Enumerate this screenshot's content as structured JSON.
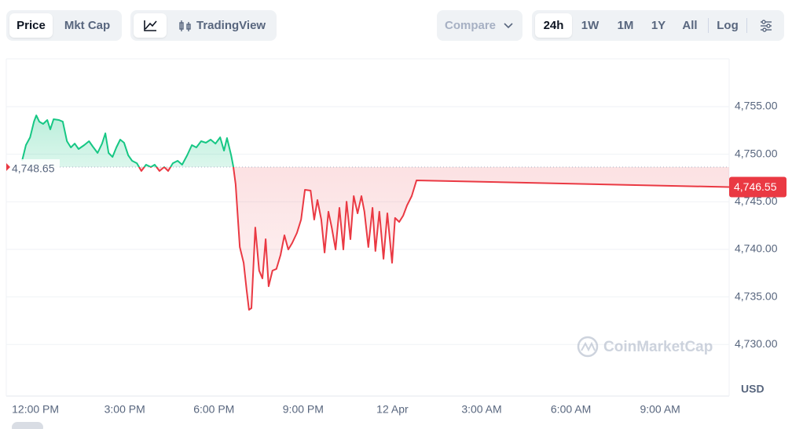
{
  "toolbar": {
    "tabs": [
      "Price",
      "Mkt Cap"
    ],
    "chart_style": "TradingView",
    "compare": "Compare",
    "ranges": [
      "24h",
      "1W",
      "1M",
      "1Y",
      "All"
    ],
    "log": "Log"
  },
  "chart_data": {
    "type": "line",
    "x": [
      11.55,
      11.68,
      11.82,
      11.95,
      12.03,
      12.13,
      12.26,
      12.4,
      12.5,
      12.61,
      12.79,
      12.92,
      13.06,
      13.19,
      13.32,
      13.45,
      13.64,
      13.8,
      13.93,
      14.09,
      14.24,
      14.35,
      14.46,
      14.59,
      14.72,
      14.85,
      14.98,
      15.12,
      15.25,
      15.41,
      15.56,
      15.72,
      15.88,
      16.01,
      16.17,
      16.33,
      16.46,
      16.62,
      16.78,
      16.93,
      17.1,
      17.26,
      17.41,
      17.57,
      17.73,
      17.89,
      18.05,
      18.21,
      18.34,
      18.44,
      18.58,
      18.65,
      18.73,
      18.87,
      19.0,
      19.1,
      19.18,
      19.26,
      19.39,
      19.52,
      19.63,
      19.74,
      19.84,
      19.97,
      20.1,
      20.24,
      20.37,
      20.5,
      20.63,
      20.79,
      20.93,
      21.06,
      21.25,
      21.37,
      21.48,
      21.61,
      21.72,
      21.85,
      21.96,
      22.09,
      22.22,
      22.35,
      22.46,
      22.59,
      22.7,
      22.83,
      22.96,
      23.06,
      23.19,
      23.33,
      23.43,
      23.56,
      23.7,
      23.83,
      23.99,
      24.09,
      24.23,
      24.36,
      24.49,
      24.65,
      24.81,
      35.32
    ],
    "values": [
      4749.31,
      4750.96,
      4751.78,
      4753.43,
      4754.09,
      4753.43,
      4753.19,
      4753.6,
      4752.61,
      4753.68,
      4753.6,
      4753.43,
      4751.37,
      4750.71,
      4751.12,
      4750.55,
      4750.96,
      4751.37,
      4750.8,
      4750.14,
      4751.12,
      4752.2,
      4750.14,
      4749.72,
      4750.71,
      4751.54,
      4751.21,
      4749.89,
      4749.31,
      4749.06,
      4748.24,
      4748.9,
      4748.65,
      4748.9,
      4748.24,
      4748.65,
      4748.24,
      4749.06,
      4749.31,
      4748.9,
      4749.89,
      4750.96,
      4750.71,
      4751.37,
      4751.21,
      4751.54,
      4751.12,
      4751.78,
      4750.38,
      4751.7,
      4749.89,
      4748.73,
      4746.84,
      4740.24,
      4738.59,
      4735.71,
      4733.65,
      4733.82,
      4742.3,
      4737.77,
      4736.95,
      4741.07,
      4736.12,
      4737.77,
      4737.94,
      4739.42,
      4741.48,
      4739.99,
      4740.66,
      4741.73,
      4743.13,
      4746.26,
      4746.18,
      4743.13,
      4745.19,
      4743.13,
      4739.67,
      4743.96,
      4742.3,
      4739.99,
      4744.37,
      4739.99,
      4745.02,
      4741.07,
      4745.6,
      4743.79,
      4745.6,
      4743.96,
      4740.24,
      4744.37,
      4739.83,
      4743.96,
      4739.01,
      4743.79,
      4738.59,
      4743.3,
      4742.88,
      4743.54,
      4744.61,
      4745.6,
      4747.25,
      4746.55
    ],
    "up_color": "#16c784",
    "down_color": "#ea3943",
    "reference": {
      "value": 4748.65,
      "label": "4,748.65"
    },
    "last_price": {
      "value": 4746.55,
      "label": "4,746.55"
    },
    "xlim": [
      11.02,
      35.32
    ],
    "xticks": [
      {
        "value": 12,
        "label": "12:00 PM"
      },
      {
        "value": 15,
        "label": "3:00 PM"
      },
      {
        "value": 18,
        "label": "6:00 PM"
      },
      {
        "value": 21,
        "label": "9:00 PM"
      },
      {
        "value": 24,
        "label": "12 Apr"
      },
      {
        "value": 27,
        "label": "3:00 AM"
      },
      {
        "value": 30,
        "label": "6:00 AM"
      },
      {
        "value": 33,
        "label": "9:00 AM"
      }
    ],
    "ylim": [
      4724.58,
      4760.03
    ],
    "yticks": [
      {
        "value": 4730,
        "label": "4,730.00"
      },
      {
        "value": 4735,
        "label": "4,735.00"
      },
      {
        "value": 4740,
        "label": "4,740.00"
      },
      {
        "value": 4745,
        "label": "4,745.00"
      },
      {
        "value": 4750,
        "label": "4,750.00"
      },
      {
        "value": 4755,
        "label": "4,755.00"
      }
    ],
    "grid": true,
    "y_unit": "USD",
    "watermark": "CoinMarketCap"
  }
}
